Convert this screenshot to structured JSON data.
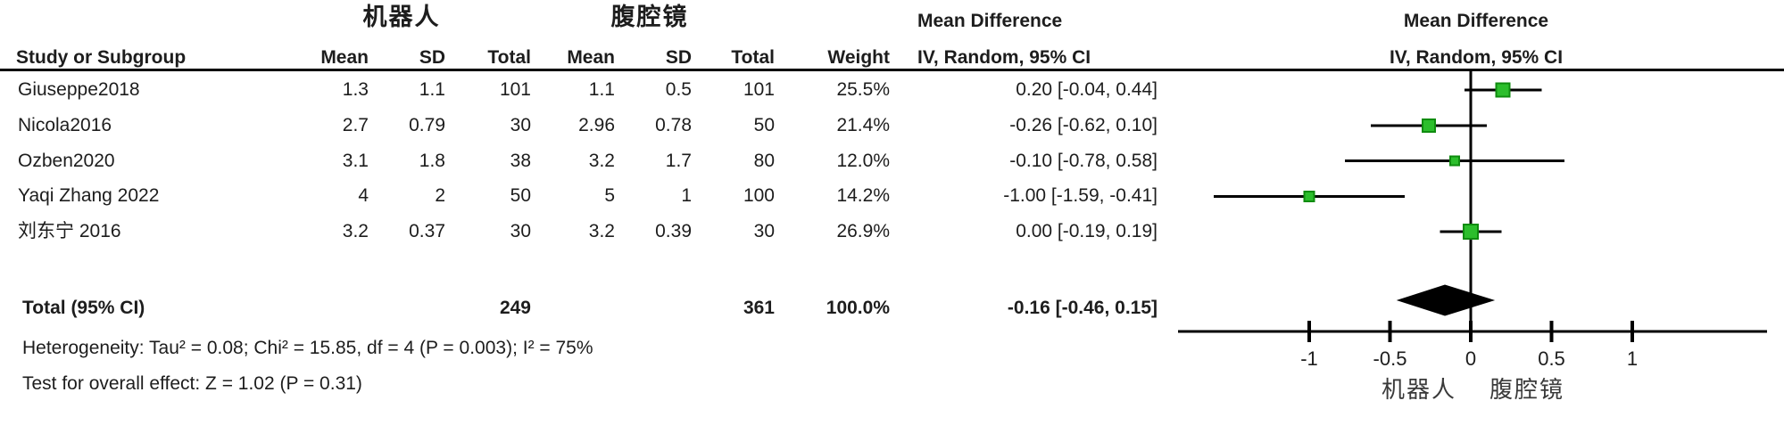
{
  "table": {
    "group1_header": "机器人",
    "group2_header": "腹腔镜",
    "md_header_line1": "Mean Difference",
    "md_header_line2": "IV, Random, 95% CI",
    "plot_header_line1": "Mean Difference",
    "plot_header_line2": "IV, Random, 95% CI",
    "columns": [
      "Study or Subgroup",
      "Mean",
      "SD",
      "Total",
      "Mean",
      "SD",
      "Total",
      "Weight"
    ],
    "rows": [
      {
        "study": "Giuseppe2018",
        "mean1": "1.3",
        "sd1": "1.1",
        "total1": "101",
        "mean2": "1.1",
        "sd2": "0.5",
        "total2": "101",
        "weight": "25.5%",
        "ci": "0.20 [-0.04, 0.44]"
      },
      {
        "study": "Nicola2016",
        "mean1": "2.7",
        "sd1": "0.79",
        "total1": "30",
        "mean2": "2.96",
        "sd2": "0.78",
        "total2": "50",
        "weight": "21.4%",
        "ci": "-0.26 [-0.62, 0.10]"
      },
      {
        "study": "Ozben2020",
        "mean1": "3.1",
        "sd1": "1.8",
        "total1": "38",
        "mean2": "3.2",
        "sd2": "1.7",
        "total2": "80",
        "weight": "12.0%",
        "ci": "-0.10 [-0.78, 0.58]"
      },
      {
        "study": "Yaqi Zhang 2022",
        "mean1": "4",
        "sd1": "2",
        "total1": "50",
        "mean2": "5",
        "sd2": "1",
        "total2": "100",
        "weight": "14.2%",
        "ci": "-1.00 [-1.59, -0.41]"
      },
      {
        "study": "刘东宁 2016",
        "mean1": "3.2",
        "sd1": "0.37",
        "total1": "30",
        "mean2": "3.2",
        "sd2": "0.39",
        "total2": "30",
        "weight": "26.9%",
        "ci": "0.00 [-0.19, 0.19]"
      }
    ],
    "total_row": {
      "label": "Total (95% CI)",
      "total1": "249",
      "total2": "361",
      "weight": "100.0%",
      "ci": "-0.16 [-0.46, 0.15]"
    },
    "heterogeneity": "Heterogeneity: Tau² = 0.08; Chi² = 15.85, df = 4 (P = 0.003); I² = 75%",
    "overall_effect": "Test for overall effect: Z = 1.02 (P = 0.31)"
  },
  "chart_data": {
    "type": "forest",
    "title": "Mean Difference, IV, Random, 95% CI",
    "studies": [
      {
        "name": "Giuseppe2018",
        "md": 0.2,
        "ci_low": -0.04,
        "ci_high": 0.44,
        "weight": 25.5
      },
      {
        "name": "Nicola2016",
        "md": -0.26,
        "ci_low": -0.62,
        "ci_high": 0.1,
        "weight": 21.4
      },
      {
        "name": "Ozben2020",
        "md": -0.1,
        "ci_low": -0.78,
        "ci_high": 0.58,
        "weight": 12.0
      },
      {
        "name": "Yaqi Zhang 2022",
        "md": -1.0,
        "ci_low": -1.59,
        "ci_high": -0.41,
        "weight": 14.2
      },
      {
        "name": "刘东宁 2016",
        "md": 0.0,
        "ci_low": -0.19,
        "ci_high": 0.19,
        "weight": 26.9
      }
    ],
    "total": {
      "md": -0.16,
      "ci_low": -0.46,
      "ci_high": 0.15
    },
    "axis_ticks": [
      -1,
      -0.5,
      0,
      0.5,
      1
    ],
    "xlim": [
      -1.81,
      1.83
    ],
    "favours_left": "机器人",
    "favours_right": "腹腔镜",
    "marker_color": "#2cbe2c",
    "marker_border": "#0f8c0f",
    "line_color": "#000000",
    "diamond_color": "#000000"
  }
}
